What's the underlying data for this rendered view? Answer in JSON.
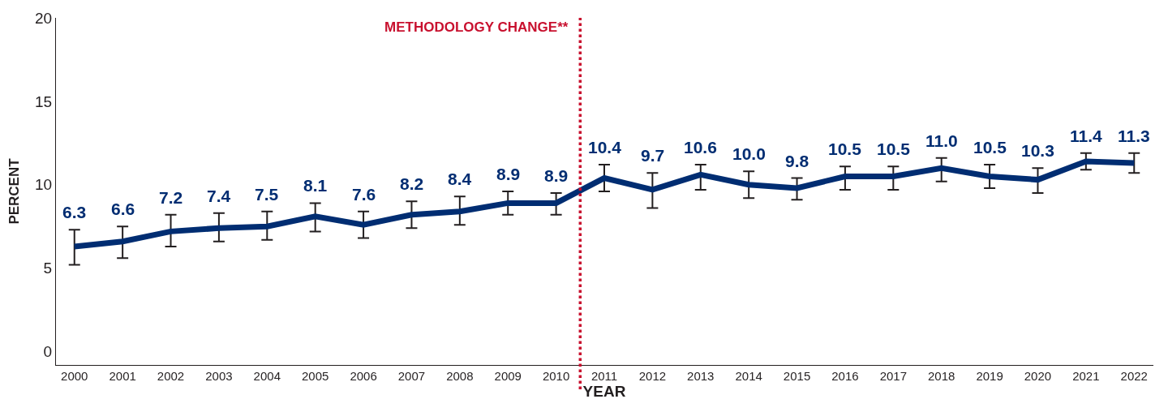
{
  "chart_data": {
    "type": "line",
    "xlabel": "YEAR",
    "ylabel": "PERCENT",
    "x": [
      2000,
      2001,
      2002,
      2003,
      2004,
      2005,
      2006,
      2007,
      2008,
      2009,
      2010,
      2011,
      2012,
      2013,
      2014,
      2015,
      2016,
      2017,
      2018,
      2019,
      2020,
      2021,
      2022
    ],
    "xlim": [
      1999.6,
      2022.4
    ],
    "xticks": [
      2000,
      2001,
      2002,
      2003,
      2004,
      2005,
      2006,
      2007,
      2008,
      2009,
      2010,
      2011,
      2012,
      2013,
      2014,
      2015,
      2016,
      2017,
      2018,
      2019,
      2020,
      2021,
      2022
    ],
    "ylim": [
      -0.8,
      20
    ],
    "yticks": [
      0,
      5,
      10,
      15,
      20
    ],
    "series": [
      {
        "color": "#002d72",
        "values": [
          6.3,
          6.6,
          7.2,
          7.4,
          7.5,
          8.1,
          7.6,
          8.2,
          8.4,
          8.9,
          8.9,
          10.4,
          9.7,
          10.6,
          10.0,
          9.8,
          10.5,
          10.5,
          11.0,
          10.5,
          10.3,
          11.4,
          11.3
        ],
        "value_labels": [
          "6.3",
          "6.6",
          "7.2",
          "7.4",
          "7.5",
          "8.1",
          "7.6",
          "8.2",
          "8.4",
          "8.9",
          "8.9",
          "10.4",
          "9.7",
          "10.6",
          "10.0",
          "9.8",
          "10.5",
          "10.5",
          "11.0",
          "10.5",
          "10.3",
          "11.4",
          "11.3"
        ],
        "errors": [
          [
            5.2,
            7.3
          ],
          [
            5.6,
            7.5
          ],
          [
            6.3,
            8.2
          ],
          [
            6.6,
            8.3
          ],
          [
            6.7,
            8.4
          ],
          [
            7.2,
            8.9
          ],
          [
            6.8,
            8.4
          ],
          [
            7.4,
            9.0
          ],
          [
            7.6,
            9.3
          ],
          [
            8.2,
            9.6
          ],
          [
            8.2,
            9.5
          ],
          [
            9.6,
            11.2
          ],
          [
            8.6,
            10.7
          ],
          [
            9.7,
            11.2
          ],
          [
            9.2,
            10.8
          ],
          [
            9.1,
            10.4
          ],
          [
            9.7,
            11.1
          ],
          [
            9.7,
            11.1
          ],
          [
            10.2,
            11.6
          ],
          [
            9.8,
            11.2
          ],
          [
            9.5,
            11.0
          ],
          [
            10.9,
            11.9
          ],
          [
            10.7,
            11.9
          ]
        ]
      }
    ],
    "ref_lines": [
      {
        "axis": "x",
        "value": 2010.5,
        "label": "METHODOLOGY CHANGE**",
        "color": "#c8102e",
        "line_style": "dotted"
      }
    ],
    "line_style": "solid"
  }
}
